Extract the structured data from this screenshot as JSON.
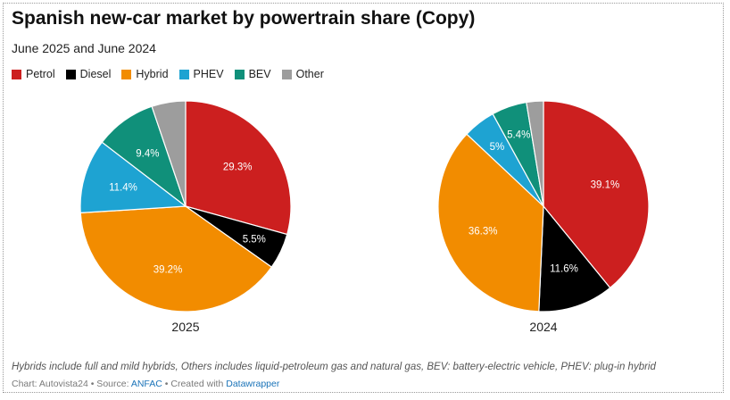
{
  "title": "Spanish new-car market by powertrain share (Copy)",
  "subtitle": "June 2025 and June 2024",
  "legend": [
    {
      "label": "Petrol",
      "color": "#cc1f1f"
    },
    {
      "label": "Diesel",
      "color": "#000000"
    },
    {
      "label": "Hybrid",
      "color": "#f28c00"
    },
    {
      "label": "PHEV",
      "color": "#1ea3d2"
    },
    {
      "label": "BEV",
      "color": "#10907a"
    },
    {
      "label": "Other",
      "color": "#9d9d9d"
    }
  ],
  "chart_data": [
    {
      "type": "pie",
      "title": "2025",
      "categories": [
        "Petrol",
        "Diesel",
        "Hybrid",
        "PHEV",
        "BEV",
        "Other"
      ],
      "values": [
        29.3,
        5.5,
        39.2,
        11.4,
        9.4,
        5.2
      ],
      "labels": [
        "29.3%",
        "5.5%",
        "39.2%",
        "11.4%",
        "9.4%",
        ""
      ]
    },
    {
      "type": "pie",
      "title": "2024",
      "categories": [
        "Petrol",
        "Diesel",
        "Hybrid",
        "PHEV",
        "BEV",
        "Other"
      ],
      "values": [
        39.1,
        11.6,
        36.3,
        5,
        5.4,
        2.6
      ],
      "labels": [
        "39.1%",
        "11.6%",
        "36.3%",
        "5%",
        "5.4%",
        ""
      ]
    }
  ],
  "footnote": "Hybrids include full and mild hybrids, Others includes liquid-petroleum gas and natural gas, BEV: battery-electric vehicle, PHEV: plug-in hybrid",
  "credit": {
    "prefix": "Chart: Autovista24 • Source: ",
    "source_link": "ANFAC",
    "middle": " • Created with ",
    "tool_link": "Datawrapper"
  }
}
